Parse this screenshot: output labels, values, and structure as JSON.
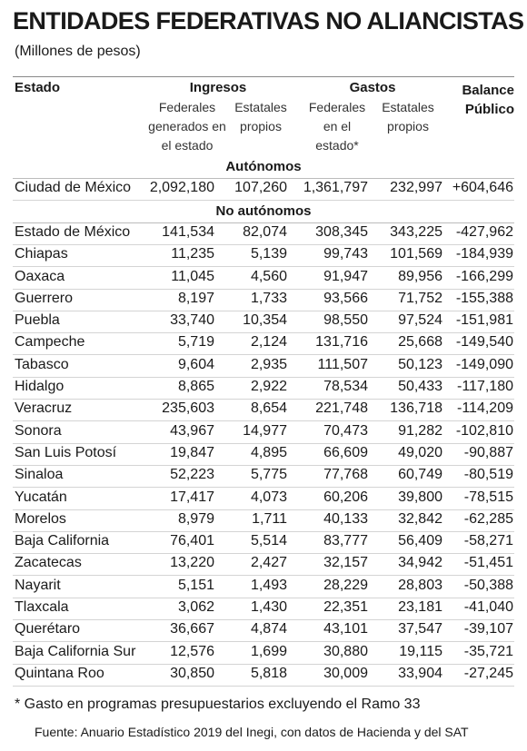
{
  "header": {
    "title": "ENTIDADES FEDERATIVAS NO ALIANCISTAS",
    "subtitle": "(Millones de pesos)"
  },
  "table": {
    "headers": [
      "Estado",
      "Ingresos",
      "Gastos",
      "Balance Público"
    ],
    "subheaders": [
      "Federales generados en el estado",
      "Estatales propios",
      "Federales en el estado*",
      "Estatales propios"
    ],
    "sections": [
      {
        "title": "Autónomos",
        "rows": [
          [
            "Ciudad de México",
            "2,092,180",
            "107,260",
            "1,361,797",
            "232,997",
            "+604,646"
          ]
        ]
      },
      {
        "title": "No autónomos",
        "rows": [
          [
            "Estado de México",
            "141,534",
            "82,074",
            "308,345",
            "343,225",
            "-427,962"
          ],
          [
            "Chiapas",
            "11,235",
            "5,139",
            "99,743",
            "101,569",
            "-184,939"
          ],
          [
            "Oaxaca",
            "11,045",
            "4,560",
            "91,947",
            "89,956",
            "-166,299"
          ],
          [
            "Guerrero",
            "8,197",
            "1,733",
            "93,566",
            "71,752",
            "-155,388"
          ],
          [
            "Puebla",
            "33,740",
            "10,354",
            "98,550",
            "97,524",
            "-151,981"
          ],
          [
            "Campeche",
            "5,719",
            "2,124",
            "131,716",
            "25,668",
            "-149,540"
          ],
          [
            "Tabasco",
            "9,604",
            "2,935",
            "111,507",
            "50,123",
            "-149,090"
          ],
          [
            "Hidalgo",
            "8,865",
            "2,922",
            "78,534",
            "50,433",
            "-117,180"
          ],
          [
            "Veracruz",
            "235,603",
            "8,654",
            "221,748",
            "136,718",
            "-114,209"
          ],
          [
            "Sonora",
            "43,967",
            "14,977",
            "70,473",
            "91,282",
            "-102,810"
          ],
          [
            "San Luis Potosí",
            "19,847",
            "4,895",
            "66,609",
            "49,020",
            "-90,887"
          ],
          [
            "Sinaloa",
            "52,223",
            "5,775",
            "77,768",
            "60,749",
            "-80,519"
          ],
          [
            "Yucatán",
            "17,417",
            "4,073",
            "60,206",
            "39,800",
            "-78,515"
          ],
          [
            "Morelos",
            "8,979",
            "1,711",
            "40,133",
            "32,842",
            "-62,285"
          ],
          [
            "Baja California",
            "76,401",
            "5,514",
            "83,777",
            "56,409",
            "-58,271"
          ],
          [
            "Zacatecas",
            "13,220",
            "2,427",
            "32,157",
            "34,942",
            "-51,451"
          ],
          [
            "Nayarit",
            "5,151",
            "1,493",
            "28,229",
            "28,803",
            "-50,388"
          ],
          [
            "Tlaxcala",
            "3,062",
            "1,430",
            "22,351",
            "23,181",
            "-41,040"
          ],
          [
            "Querétaro",
            "36,667",
            "4,874",
            "43,101",
            "37,547",
            "-39,107"
          ],
          [
            "Baja California Sur",
            "12,576",
            "1,699",
            "30,880",
            "19,115",
            "-35,721"
          ],
          [
            "Quintana Roo",
            "30,850",
            "5,818",
            "30,009",
            "33,904",
            "-27,245"
          ]
        ]
      }
    ]
  },
  "footnote": "* Gasto en programas presupuestarios excluyendo el Ramo 33",
  "source": "Fuente: Anuario Estadístico 2019 del Inegi, con datos de Hacienda y del SAT"
}
